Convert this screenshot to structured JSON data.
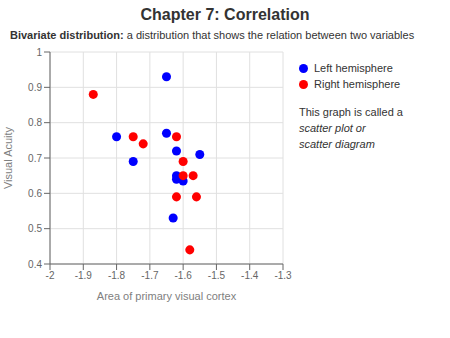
{
  "chart_data": {
    "type": "scatter",
    "title": "Chapter 7: Correlation",
    "subtitle": "Bivariate distribution: a distribution that shows the relation between two variables",
    "xlabel": "Area of primary visual cortex",
    "ylabel": "Visual Acuity",
    "annotations": [
      "This graph is called a",
      "scatter plot or",
      "scatter diagram"
    ],
    "series": [
      {
        "name": "Left hemisphere",
        "color": "#0000FF",
        "x": [
          -1.65,
          -1.8,
          -1.75,
          -1.65,
          -1.62,
          -1.62,
          -1.6,
          -1.55,
          -1.63,
          -1.62
        ],
        "values": [
          0.93,
          0.76,
          0.69,
          0.77,
          0.72,
          0.64,
          0.635,
          0.71,
          0.53,
          0.65
        ]
      },
      {
        "name": "Right hemisphere",
        "color": "#FF0000",
        "x": [
          -1.87,
          -1.75,
          -1.72,
          -1.62,
          -1.6,
          -1.6,
          -1.57,
          -1.56,
          -1.58,
          -1.62
        ],
        "values": [
          0.88,
          0.76,
          0.74,
          0.76,
          0.69,
          0.65,
          0.65,
          0.59,
          0.44,
          0.59
        ]
      }
    ],
    "xlim": [
      -2,
      -1.3
    ],
    "ylim": [
      0.4,
      1.0
    ],
    "xticks": [
      -2.0,
      -1.9,
      -1.8,
      -1.7,
      -1.6,
      -1.5,
      -1.4,
      -1.3
    ],
    "yticks": [
      0.4,
      0.5,
      0.6,
      0.7,
      0.8,
      0.9,
      1.0
    ],
    "grid": true,
    "legend": "right"
  }
}
